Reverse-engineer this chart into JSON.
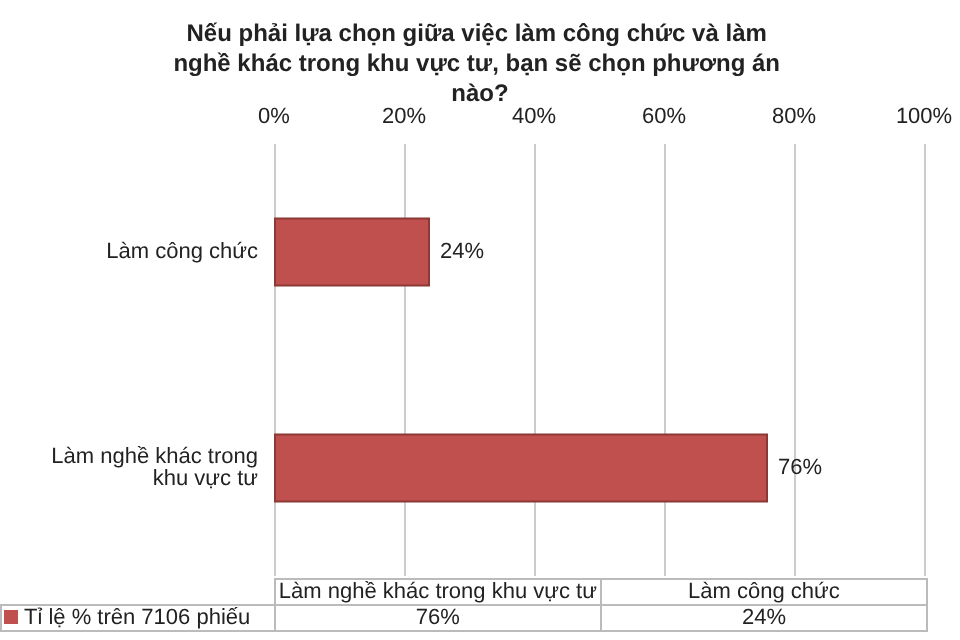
{
  "chart_data": {
    "type": "bar",
    "orientation": "horizontal",
    "title": "Nếu phải lựa chọn giữa việc làm công chức và làm nghề khác trong khu vực tư, bạn sẽ chọn phương án nào?",
    "categories": [
      "Làm công chức",
      "Làm nghề khác trong khu vực tư"
    ],
    "series": [
      {
        "name": "Tỉ lệ % trên 7106 phiếu",
        "color": "#c0504d",
        "values": [
          24,
          76
        ],
        "value_labels": [
          "24%",
          "76%"
        ]
      }
    ],
    "xlim": [
      0,
      100
    ],
    "xticks": [
      {
        "value": 0,
        "label": "0%"
      },
      {
        "value": 20,
        "label": "20%"
      },
      {
        "value": 40,
        "label": "40%"
      },
      {
        "value": 60,
        "label": "60%"
      },
      {
        "value": 80,
        "label": "80%"
      },
      {
        "value": 100,
        "label": "100%"
      }
    ],
    "grid": "x",
    "legend": "bottom"
  }
}
